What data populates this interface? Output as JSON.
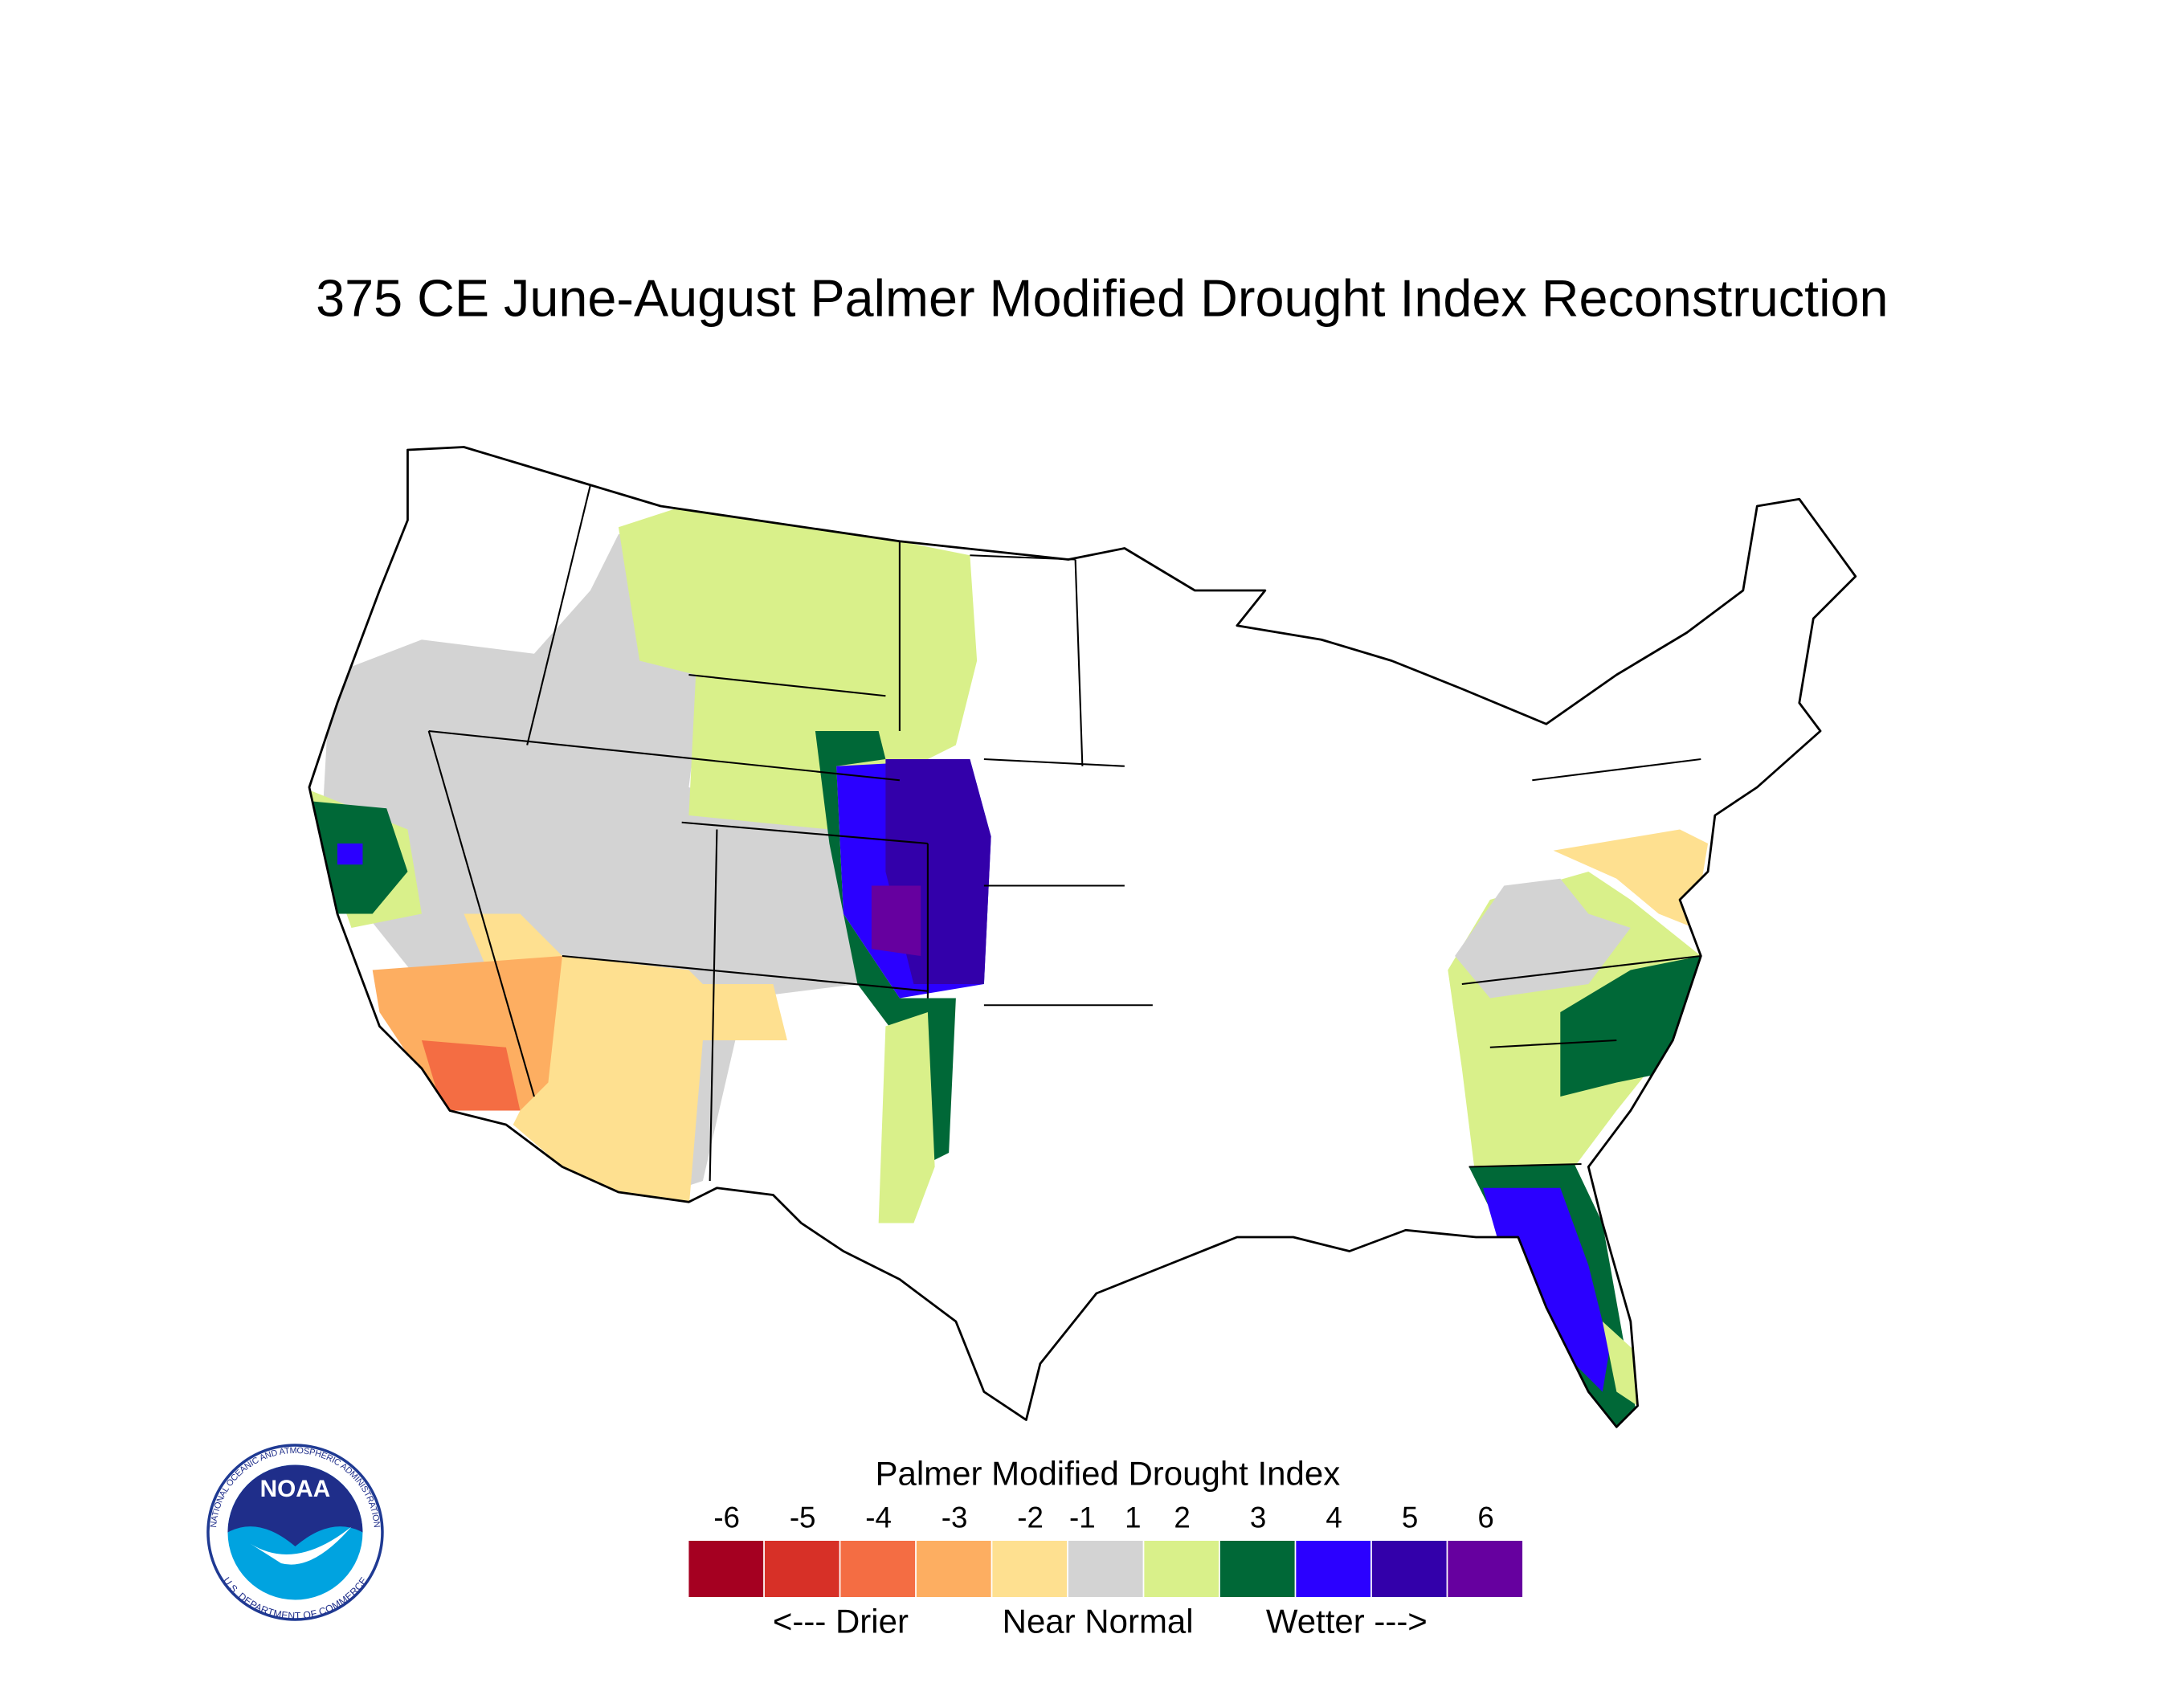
{
  "title": "375 CE  June-August  Palmer Modified Drought Index Reconstruction",
  "legend": {
    "title": "Palmer Modified Drought Index",
    "ticks": [
      -6,
      -5,
      -4,
      -3,
      -2,
      -1,
      1,
      2,
      3,
      4,
      5,
      6
    ],
    "colors": [
      "#a50021",
      "#d73027",
      "#f46d43",
      "#fdae61",
      "#fee090",
      "#d3d3d3",
      "#d9f08a",
      "#006837",
      "#2b00ff",
      "#3300aa",
      "#66009f"
    ],
    "labels": [
      "<--- Drier",
      "Near Normal",
      "Wetter --->"
    ]
  },
  "logo": {
    "name": "NOAA",
    "ring_top": "NATIONAL OCEANIC AND ATMOSPHERIC ADMINISTRATION",
    "ring_bottom": "U.S. DEPARTMENT OF COMMERCE"
  }
}
